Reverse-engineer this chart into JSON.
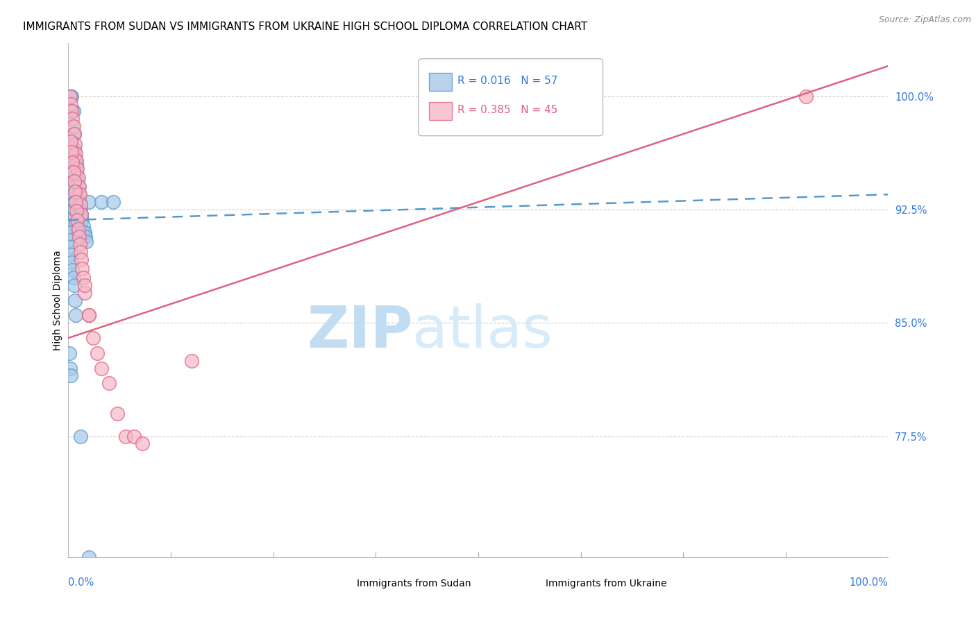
{
  "title": "IMMIGRANTS FROM SUDAN VS IMMIGRANTS FROM UKRAINE HIGH SCHOOL DIPLOMA CORRELATION CHART",
  "source": "Source: ZipAtlas.com",
  "ylabel": "High School Diploma",
  "ylabel_right_values": [
    1.0,
    0.925,
    0.85,
    0.775
  ],
  "xmin": 0.0,
  "xmax": 1.0,
  "ymin": 0.695,
  "ymax": 1.035,
  "legend_r1": "R = 0.016",
  "legend_n1": "N = 57",
  "legend_r2": "R = 0.385",
  "legend_n2": "N = 45",
  "legend_label1": "Immigrants from Sudan",
  "legend_label2": "Immigrants from Ukraine",
  "color_sudan_face": "#a8c8e8",
  "color_sudan_edge": "#5599cc",
  "color_ukraine_face": "#f5b8c8",
  "color_ukraine_edge": "#e06080",
  "color_sudan_line": "#5599cc",
  "color_ukraine_line": "#e06080",
  "watermark_zip": "ZIP",
  "watermark_atlas": "atlas",
  "gridline_color": "#cccccc",
  "background_color": "#ffffff",
  "title_fontsize": 11,
  "axis_label_fontsize": 10,
  "tick_fontsize": 10.5,
  "legend_fontsize": 11,
  "sudan_x": [
    0.002,
    0.003,
    0.003,
    0.004,
    0.004,
    0.005,
    0.005,
    0.006,
    0.006,
    0.007,
    0.007,
    0.008,
    0.009,
    0.01,
    0.01,
    0.011,
    0.012,
    0.013,
    0.014,
    0.015,
    0.016,
    0.017,
    0.018,
    0.019,
    0.02,
    0.021,
    0.022,
    0.025,
    0.003,
    0.004,
    0.004,
    0.005,
    0.005,
    0.006,
    0.006,
    0.007,
    0.007,
    0.008,
    0.009,
    0.01,
    0.002,
    0.002,
    0.003,
    0.003,
    0.004,
    0.005,
    0.006,
    0.007,
    0.008,
    0.009,
    0.001,
    0.002,
    0.003,
    0.04,
    0.055,
    0.015,
    0.025
  ],
  "sudan_y": [
    1.0,
    1.0,
    0.99,
    1.0,
    0.99,
    0.99,
    0.98,
    0.99,
    0.975,
    0.975,
    0.965,
    0.96,
    0.958,
    0.955,
    0.95,
    0.945,
    0.94,
    0.935,
    0.93,
    0.926,
    0.922,
    0.918,
    0.914,
    0.91,
    0.91,
    0.907,
    0.904,
    0.93,
    0.97,
    0.965,
    0.958,
    0.95,
    0.945,
    0.94,
    0.935,
    0.93,
    0.925,
    0.92,
    0.916,
    0.912,
    0.91,
    0.905,
    0.9,
    0.895,
    0.89,
    0.885,
    0.88,
    0.875,
    0.865,
    0.855,
    0.83,
    0.82,
    0.815,
    0.93,
    0.93,
    0.775,
    0.695
  ],
  "ukraine_x": [
    0.002,
    0.003,
    0.004,
    0.005,
    0.006,
    0.007,
    0.008,
    0.009,
    0.01,
    0.011,
    0.012,
    0.013,
    0.014,
    0.015,
    0.016,
    0.003,
    0.004,
    0.005,
    0.006,
    0.007,
    0.008,
    0.009,
    0.01,
    0.011,
    0.012,
    0.013,
    0.014,
    0.015,
    0.016,
    0.017,
    0.018,
    0.02,
    0.025,
    0.03,
    0.04,
    0.05,
    0.06,
    0.07,
    0.08,
    0.09,
    0.035,
    0.025,
    0.02,
    0.9,
    0.15
  ],
  "ukraine_y": [
    1.0,
    0.995,
    0.99,
    0.985,
    0.98,
    0.975,
    0.968,
    0.962,
    0.957,
    0.952,
    0.946,
    0.94,
    0.935,
    0.928,
    0.922,
    0.97,
    0.963,
    0.956,
    0.95,
    0.944,
    0.937,
    0.93,
    0.924,
    0.918,
    0.912,
    0.907,
    0.902,
    0.897,
    0.892,
    0.886,
    0.88,
    0.87,
    0.855,
    0.84,
    0.82,
    0.81,
    0.79,
    0.775,
    0.775,
    0.77,
    0.83,
    0.855,
    0.875,
    1.0,
    0.825
  ],
  "sudan_trend_x0": 0.0,
  "sudan_trend_y0": 0.918,
  "sudan_trend_x1": 1.0,
  "sudan_trend_y1": 0.935,
  "ukraine_trend_x0": 0.0,
  "ukraine_trend_y0": 0.84,
  "ukraine_trend_x1": 1.0,
  "ukraine_trend_y1": 1.02,
  "xtick_positions": [
    0.0,
    0.125,
    0.25,
    0.375,
    0.5,
    0.625,
    0.75,
    0.875,
    1.0
  ]
}
